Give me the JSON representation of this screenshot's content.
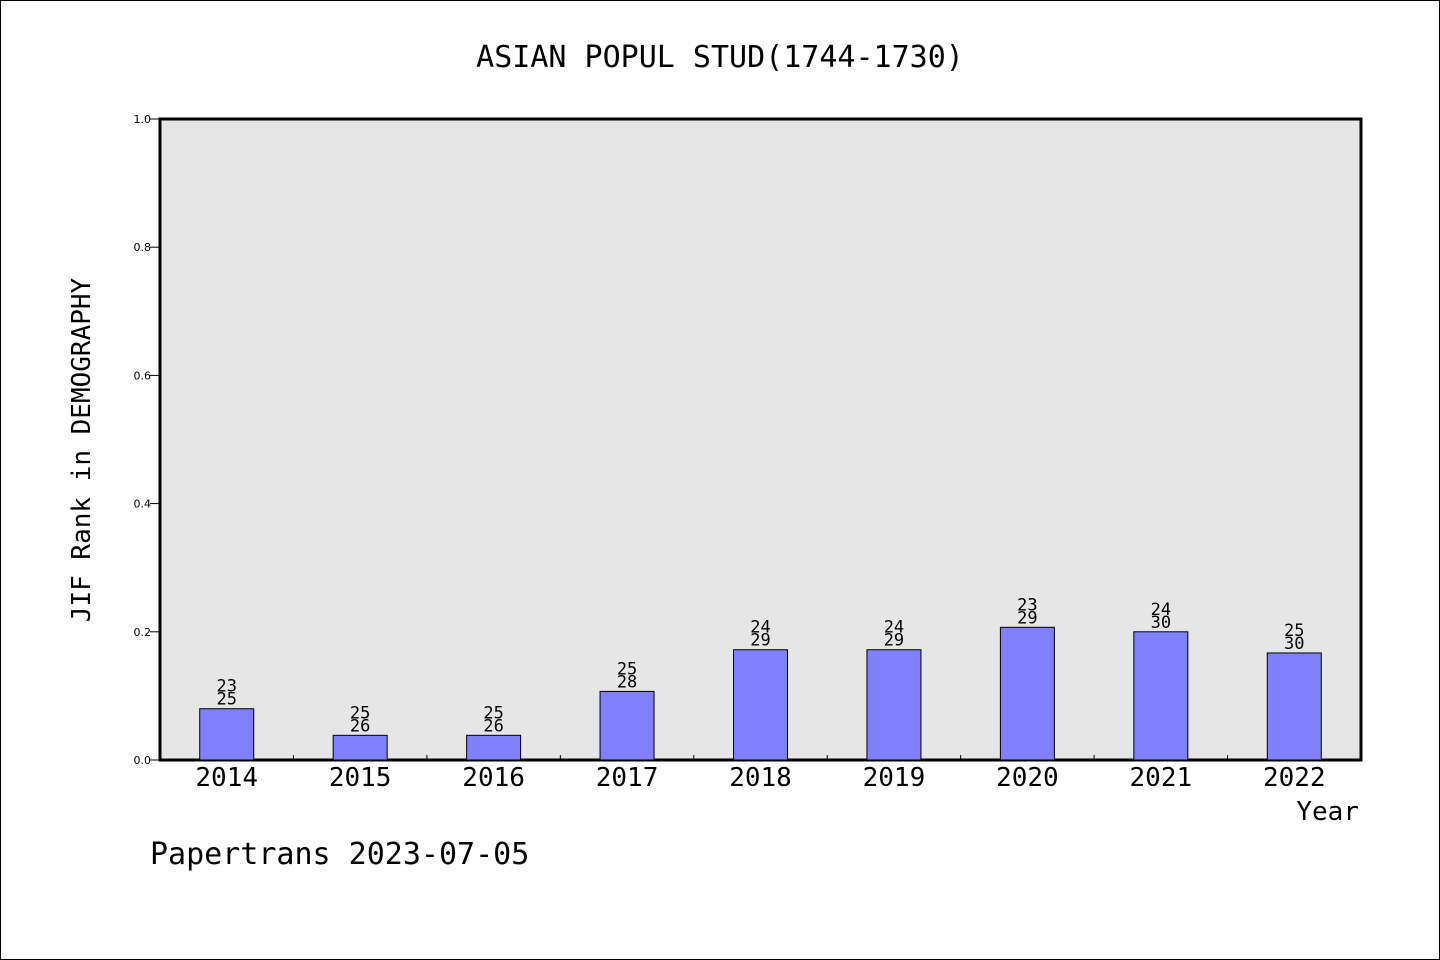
{
  "chart_data": {
    "type": "bar",
    "title": "ASIAN POPUL STUD(1744-1730)",
    "xlabel": "Year",
    "ylabel": "JIF Rank in DEMOGRAPHY",
    "categories": [
      "2014",
      "2015",
      "2016",
      "2017",
      "2018",
      "2019",
      "2020",
      "2021",
      "2022"
    ],
    "values": [
      0.08,
      0.0385,
      0.0385,
      0.107,
      0.172,
      0.172,
      0.207,
      0.2,
      0.167
    ],
    "bar_labels": [
      [
        "23",
        "25"
      ],
      [
        "25",
        "26"
      ],
      [
        "25",
        "26"
      ],
      [
        "25",
        "28"
      ],
      [
        "24",
        "29"
      ],
      [
        "24",
        "29"
      ],
      [
        "23",
        "29"
      ],
      [
        "24",
        "30"
      ],
      [
        "25",
        "30"
      ]
    ],
    "ylim": [
      0,
      1.0
    ],
    "yticks": [
      "0.0",
      "0.2",
      "0.4",
      "0.6",
      "0.8",
      "1.0"
    ],
    "grid": false,
    "colors": {
      "bar": "#8080ff",
      "plot_bg": "#e6e6e6",
      "axis": "#000000"
    }
  },
  "footer": {
    "text": "Papertrans 2023-07-05"
  }
}
